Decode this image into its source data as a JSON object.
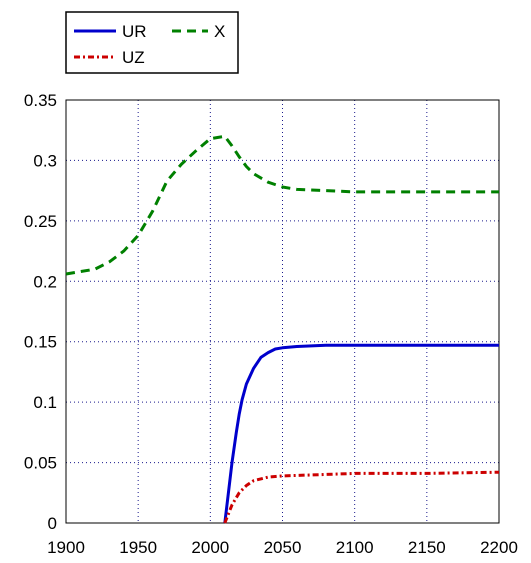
{
  "chart_data": {
    "type": "line",
    "title": "",
    "xlabel": "",
    "ylabel": "",
    "xlim": [
      1900,
      2200
    ],
    "ylim": [
      0,
      0.35
    ],
    "x_ticks": [
      1900,
      1950,
      2000,
      2050,
      2100,
      2150,
      2200
    ],
    "x_tick_labels": [
      "1900",
      "1950",
      "2000",
      "2050",
      "2100",
      "2150",
      "2200"
    ],
    "y_ticks": [
      0,
      0.05,
      0.1,
      0.15,
      0.2,
      0.25,
      0.3,
      0.35
    ],
    "y_tick_labels": [
      "0",
      "0.05",
      "0.1",
      "0.15",
      "0.2",
      "0.25",
      "0.3",
      "0.35"
    ],
    "grid": true,
    "legend_position": "top-left, outside above plot",
    "series": [
      {
        "name": "UR",
        "color": "#0000cc",
        "style": "solid",
        "x": [
          2010,
          2012,
          2015,
          2018,
          2020,
          2022,
          2025,
          2030,
          2035,
          2040,
          2045,
          2050,
          2060,
          2070,
          2080,
          2100,
          2150,
          2200
        ],
        "y": [
          0,
          0.02,
          0.05,
          0.075,
          0.09,
          0.102,
          0.115,
          0.128,
          0.137,
          0.141,
          0.144,
          0.145,
          0.146,
          0.1465,
          0.147,
          0.147,
          0.147,
          0.147
        ]
      },
      {
        "name": "UZ",
        "color": "#cc0000",
        "style": "dash-dot",
        "x": [
          2010,
          2012,
          2015,
          2020,
          2025,
          2030,
          2040,
          2050,
          2075,
          2100,
          2150,
          2200
        ],
        "y": [
          0,
          0.006,
          0.015,
          0.025,
          0.031,
          0.035,
          0.038,
          0.039,
          0.04,
          0.041,
          0.041,
          0.042
        ]
      },
      {
        "name": "X",
        "color": "#008000",
        "style": "dashed",
        "x": [
          1900,
          1910,
          1920,
          1930,
          1940,
          1950,
          1960,
          1970,
          1980,
          1990,
          2000,
          2005,
          2010,
          2015,
          2020,
          2025,
          2030,
          2040,
          2050,
          2060,
          2080,
          2100,
          2150,
          2200
        ],
        "y": [
          0.206,
          0.208,
          0.21,
          0.216,
          0.225,
          0.238,
          0.258,
          0.283,
          0.297,
          0.308,
          0.318,
          0.319,
          0.32,
          0.312,
          0.303,
          0.295,
          0.289,
          0.282,
          0.278,
          0.276,
          0.275,
          0.274,
          0.274,
          0.274
        ]
      }
    ]
  }
}
